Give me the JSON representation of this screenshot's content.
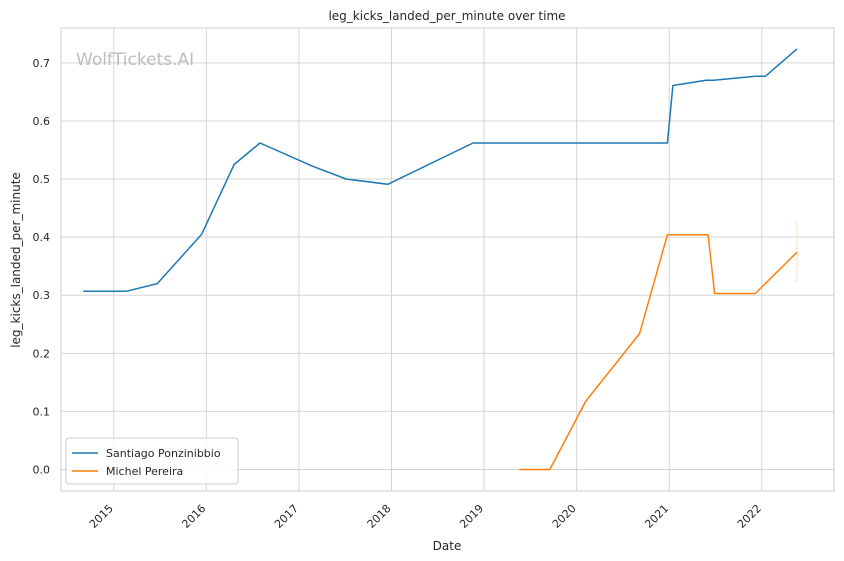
{
  "chart_data": {
    "type": "line",
    "title": "leg_kicks_landed_per_minute over time",
    "xlabel": "Date",
    "ylabel": "leg_kicks_landed_per_minute",
    "watermark": "WolfTickets.AI",
    "xlim": [
      "2014.43",
      "2022.78"
    ],
    "ylim": [
      -0.037,
      0.76
    ],
    "x_ticks": [
      "2015",
      "2016",
      "2017",
      "2018",
      "2019",
      "2020",
      "2021",
      "2022"
    ],
    "y_ticks": [
      "0.0",
      "0.1",
      "0.2",
      "0.3",
      "0.4",
      "0.5",
      "0.6",
      "0.7"
    ],
    "grid": true,
    "legend_position": "lower-left",
    "series": [
      {
        "name": "Santiago Ponzinibbio",
        "color": "#1f77b4",
        "x": [
          "2014.67",
          "2015.14",
          "2015.47",
          "2015.95",
          "2016.30",
          "2016.58",
          "2017.15",
          "2017.51",
          "2017.96",
          "2018.88",
          "2020.98",
          "2021.04",
          "2021.40",
          "2021.48",
          "2021.93",
          "2022.04",
          "2022.38"
        ],
        "y": [
          0.307,
          0.307,
          0.32,
          0.405,
          0.525,
          0.562,
          0.522,
          0.5,
          0.491,
          0.562,
          0.562,
          0.661,
          0.67,
          0.67,
          0.677,
          0.677,
          0.724
        ]
      },
      {
        "name": "Michel Pereira",
        "color": "#ff7f0e",
        "x": [
          "2019.38",
          "2019.71",
          "2020.10",
          "2020.68",
          "2020.98",
          "2021.42",
          "2021.49",
          "2021.93",
          "2022.38"
        ],
        "y": [
          0.0,
          0.0,
          0.118,
          0.234,
          0.404,
          0.404,
          0.303,
          0.303,
          0.374
        ]
      }
    ],
    "error_bar": {
      "series": "Michel Pereira",
      "x": "2022.38",
      "low": 0.322,
      "high": 0.428,
      "color": "#fbe3cc"
    }
  }
}
